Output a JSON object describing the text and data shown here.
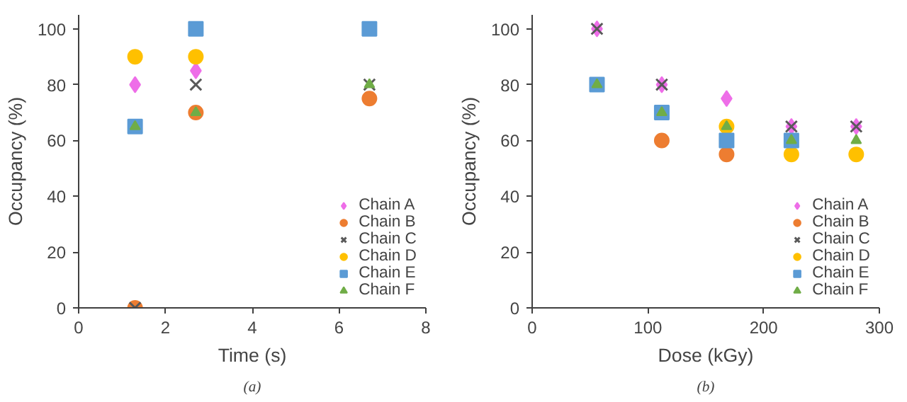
{
  "chart_data": [
    {
      "type": "scatter",
      "xlabel": "Time (s)",
      "ylabel": "Occupancy (%)",
      "annotations": [
        "(a)"
      ],
      "x": [
        1.3,
        2.7,
        6.7
      ],
      "xlim": [
        0,
        8
      ],
      "xticks": [
        0,
        2,
        4,
        6,
        8
      ],
      "ylim": [
        0,
        105
      ],
      "yticks": [
        0,
        20,
        40,
        60,
        80,
        100
      ],
      "grid": false,
      "legend": "bottom right",
      "series": [
        {
          "name": "Chain A",
          "color": "#ee6ee8",
          "marker": "diamond",
          "values": [
            80,
            85,
            null
          ]
        },
        {
          "name": "Chain B",
          "color": "#ed7d31",
          "marker": "circle",
          "values": [
            0,
            70,
            75
          ]
        },
        {
          "name": "Chain C",
          "color": "#595959",
          "marker": "cross",
          "values": [
            0,
            80,
            80
          ]
        },
        {
          "name": "Chain D",
          "color": "#ffc000",
          "marker": "circle",
          "values": [
            90,
            90,
            null
          ]
        },
        {
          "name": "Chain E",
          "color": "#5b9bd5",
          "marker": "square",
          "values": [
            65,
            100,
            100
          ]
        },
        {
          "name": "Chain F",
          "color": "#70ad47",
          "marker": "triangle",
          "values": [
            65,
            70,
            80
          ]
        }
      ]
    },
    {
      "type": "scatter",
      "xlabel": "Dose (kGy)",
      "ylabel": "Occupancy (%)",
      "annotations": [
        "(b)"
      ],
      "x": [
        56,
        112,
        168,
        224,
        280
      ],
      "xlim": [
        0,
        300
      ],
      "xticks": [
        0,
        100,
        200,
        300
      ],
      "ylim": [
        0,
        105
      ],
      "yticks": [
        0,
        20,
        40,
        60,
        80,
        100
      ],
      "grid": false,
      "legend": "bottom right",
      "series": [
        {
          "name": "Chain A",
          "color": "#ee6ee8",
          "marker": "diamond",
          "values": [
            100,
            80,
            75,
            65,
            65
          ]
        },
        {
          "name": "Chain B",
          "color": "#ed7d31",
          "marker": "circle",
          "values": [
            null,
            60,
            55,
            null,
            null
          ]
        },
        {
          "name": "Chain C",
          "color": "#595959",
          "marker": "cross",
          "values": [
            100,
            80,
            null,
            65,
            65
          ]
        },
        {
          "name": "Chain D",
          "color": "#ffc000",
          "marker": "circle",
          "values": [
            null,
            null,
            65,
            55,
            55
          ]
        },
        {
          "name": "Chain E",
          "color": "#5b9bd5",
          "marker": "square",
          "values": [
            80,
            70,
            60,
            60,
            null
          ]
        },
        {
          "name": "Chain F",
          "color": "#70ad47",
          "marker": "triangle",
          "values": [
            80,
            70,
            65,
            60,
            60
          ]
        }
      ]
    }
  ]
}
